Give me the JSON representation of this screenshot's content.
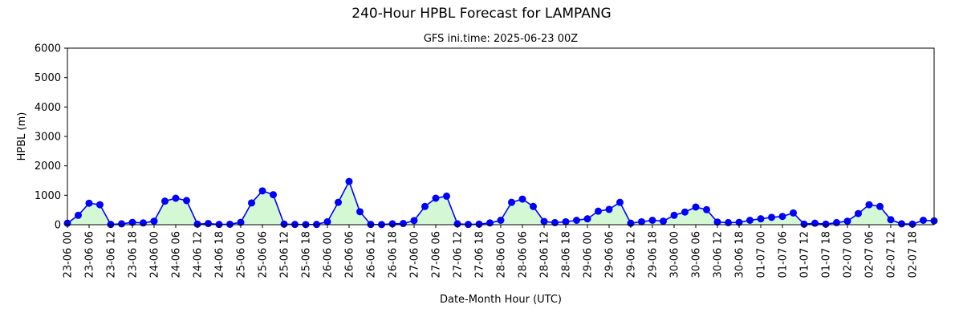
{
  "chart_data": {
    "type": "area",
    "title": "240-Hour HPBL Forecast for LAMPANG",
    "subtitle": "GFS ini.time: 2025-06-23 00Z",
    "xlabel": "Date-Month Hour (UTC)",
    "ylabel": "HPBL (m)",
    "ylim": [
      0,
      6000
    ],
    "yticks": [
      0,
      1000,
      2000,
      3000,
      4000,
      5000,
      6000
    ],
    "xticks": [
      "23-06 00",
      "23-06 06",
      "23-06 12",
      "23-06 18",
      "24-06 00",
      "24-06 06",
      "24-06 12",
      "24-06 18",
      "25-06 00",
      "25-06 06",
      "25-06 12",
      "25-06 18",
      "26-06 00",
      "26-06 06",
      "26-06 12",
      "26-06 18",
      "27-06 00",
      "27-06 06",
      "27-06 12",
      "27-06 18",
      "28-06 00",
      "28-06 06",
      "28-06 12",
      "28-06 18",
      "29-06 00",
      "29-06 06",
      "29-06 12",
      "29-06 18",
      "30-06 00",
      "30-06 06",
      "30-06 12",
      "30-06 18",
      "01-07 00",
      "01-07 06",
      "01-07 12",
      "01-07 18",
      "02-07 00",
      "02-07 06",
      "02-07 12",
      "02-07 18"
    ],
    "x_hours": [
      0,
      3,
      6,
      9,
      12,
      15,
      18,
      21,
      24,
      27,
      30,
      33,
      36,
      39,
      42,
      45,
      48,
      51,
      54,
      57,
      60,
      63,
      66,
      69,
      72,
      75,
      78,
      81,
      84,
      87,
      90,
      93,
      96,
      99,
      102,
      105,
      108,
      111,
      114,
      117,
      120,
      123,
      126,
      129,
      132,
      135,
      138,
      141,
      144,
      147,
      150,
      153,
      156,
      159,
      162,
      165,
      168,
      171,
      174,
      177,
      180,
      183,
      186,
      189,
      192,
      195,
      198,
      201,
      204,
      207,
      210,
      213,
      216,
      219,
      222,
      225,
      228,
      231,
      234,
      237,
      240
    ],
    "values": [
      50,
      320,
      730,
      680,
      10,
      30,
      80,
      60,
      120,
      800,
      900,
      820,
      20,
      40,
      10,
      15,
      80,
      740,
      1150,
      1020,
      20,
      10,
      5,
      10,
      100,
      760,
      1470,
      440,
      10,
      5,
      30,
      40,
      140,
      620,
      900,
      970,
      30,
      10,
      20,
      60,
      150,
      760,
      870,
      620,
      110,
      70,
      100,
      150,
      200,
      460,
      520,
      760,
      50,
      100,
      150,
      120,
      320,
      430,
      600,
      510,
      90,
      70,
      80,
      150,
      200,
      250,
      280,
      400,
      20,
      50,
      20,
      70,
      120,
      380,
      680,
      620,
      170,
      30,
      20,
      150,
      130
    ],
    "series_color": "#0000ff",
    "fill_color": "#d4f7d4",
    "grid": false
  }
}
